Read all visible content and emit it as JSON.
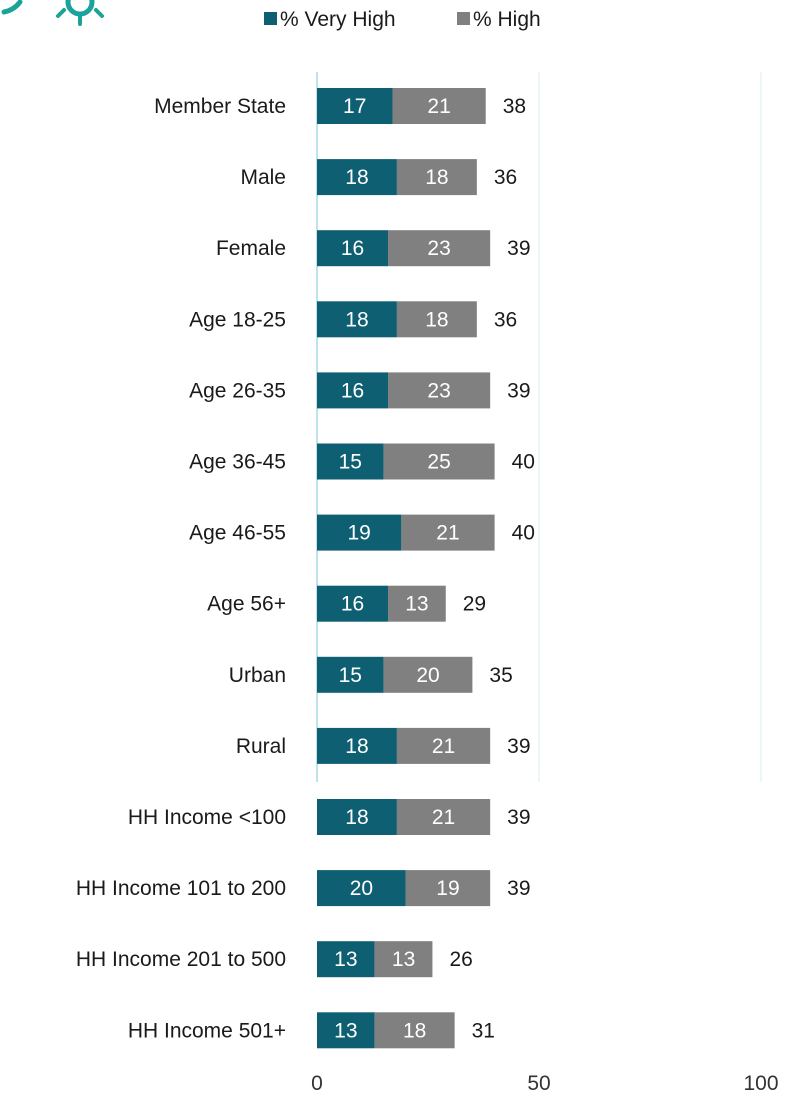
{
  "chart_data": {
    "type": "bar",
    "orientation": "horizontal",
    "stacked": true,
    "categories": [
      "Member State",
      "Male",
      "Female",
      "Age 18-25",
      "Age 26-35",
      "Age 36-45",
      "Age 46-55",
      "Age 56+",
      "Urban",
      "Rural",
      "HH Income <100",
      "HH Income 101 to 200",
      "HH Income 201 to 500",
      "HH Income 501+"
    ],
    "series": [
      {
        "name": "% Very High",
        "color": "#0f5f73",
        "values": [
          17,
          18,
          16,
          18,
          16,
          15,
          19,
          16,
          15,
          18,
          18,
          20,
          13,
          13
        ]
      },
      {
        "name": "% High",
        "color": "#808080",
        "values": [
          21,
          18,
          23,
          18,
          23,
          25,
          21,
          13,
          20,
          21,
          21,
          19,
          13,
          18
        ]
      }
    ],
    "totals": [
      38,
      36,
      39,
      36,
      39,
      40,
      40,
      29,
      35,
      39,
      39,
      39,
      26,
      31
    ],
    "xlim": [
      0,
      100
    ],
    "xticks": [
      0,
      50,
      100
    ],
    "grid": true,
    "legend": "top",
    "title": "",
    "xlabel": "",
    "ylabel": ""
  },
  "logo": {
    "name": "gear-logo-icon",
    "color": "#1aa399"
  }
}
